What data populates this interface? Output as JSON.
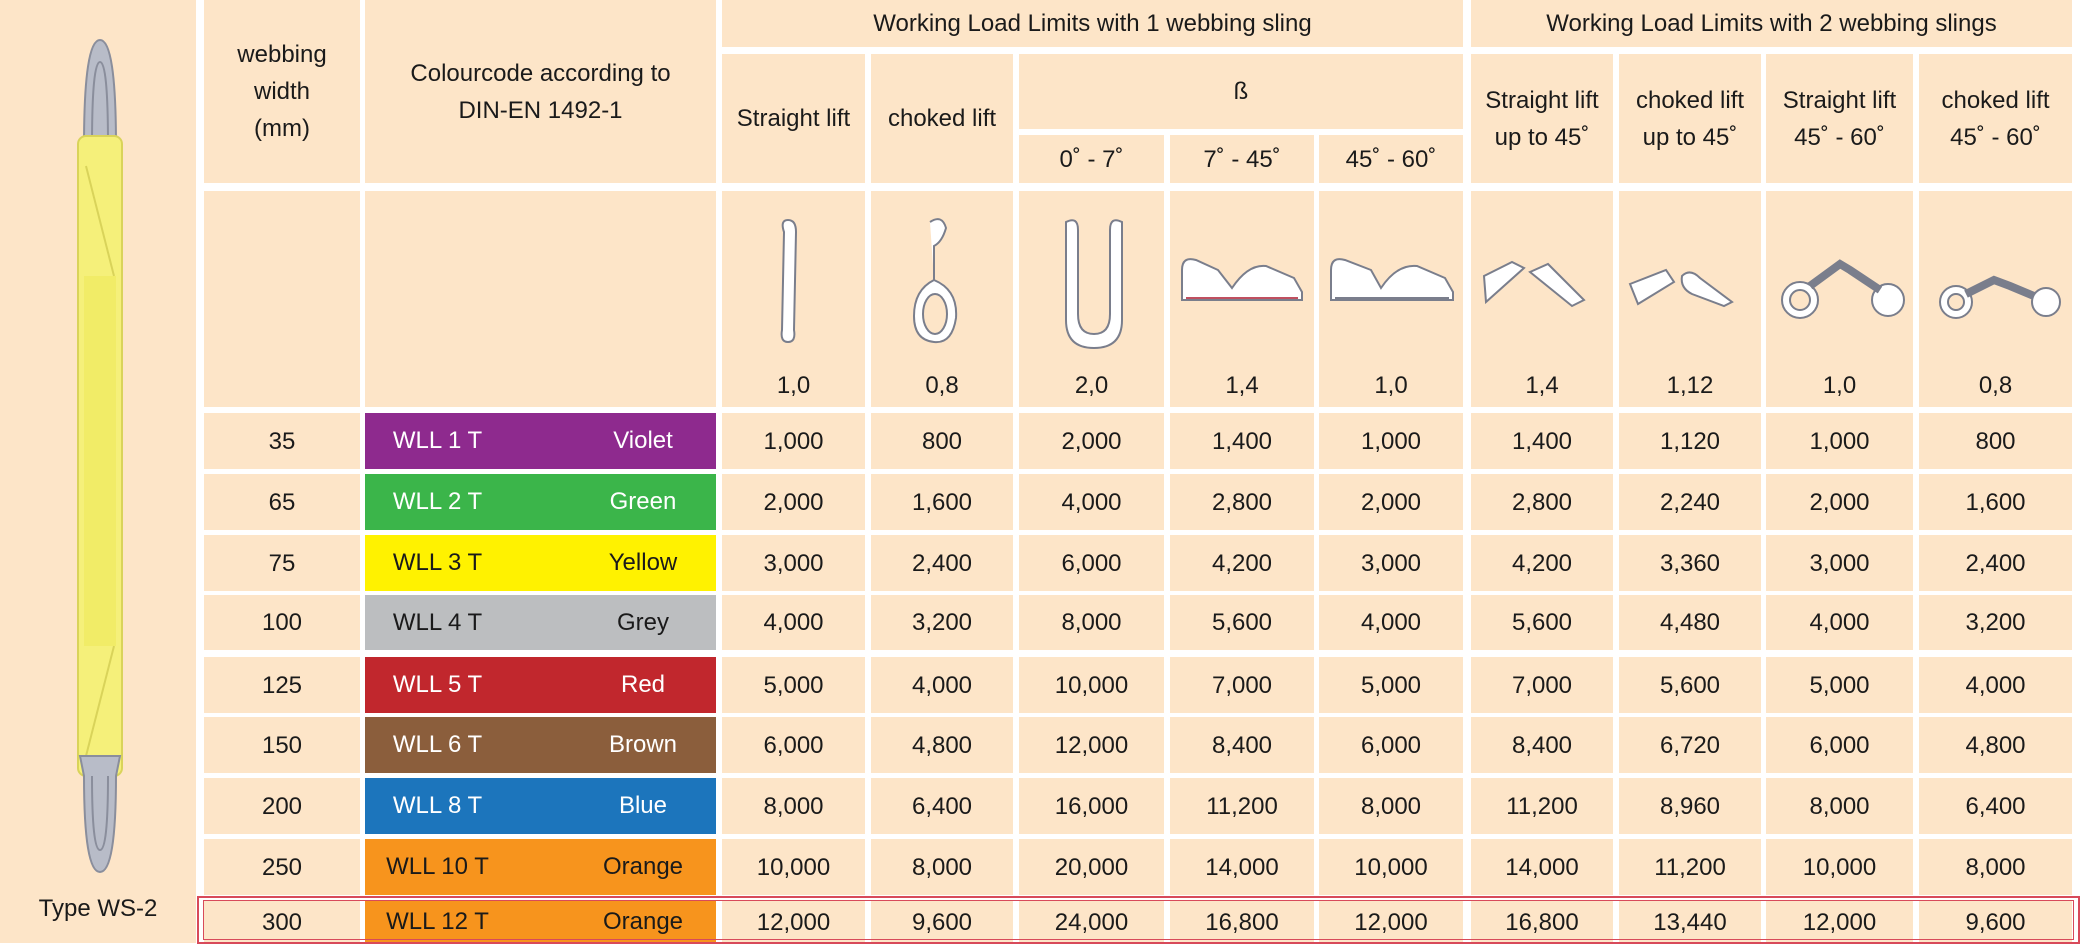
{
  "sling_caption": "Type WS-2",
  "header": {
    "width_label": "webbing width (mm)",
    "colour_label": "Colourcode according to DIN-EN 1492-1",
    "group1": "Working Load Limits with 1 webbing sling",
    "group2": "Working Load Limits with 2 webbing slings",
    "beta": "ß",
    "columns": [
      "Straight lift",
      "choked lift",
      "0˚ - 7˚",
      "7˚ - 45˚",
      "45˚ - 60˚",
      "Straight lift up to 45˚",
      "choked lift up to 45˚",
      "Straight lift 45˚ - 60˚",
      "choked lift 45˚ - 60˚"
    ]
  },
  "factors": [
    "1,0",
    "0,8",
    "2,0",
    "1,4",
    "1,0",
    "1,4",
    "1,12",
    "1,0",
    "0,8"
  ],
  "rows": [
    {
      "width": "35",
      "wll": "WLL 1 T",
      "colour": "Violet",
      "swatch": "#8e2a8e",
      "text_color": "#ffffff",
      "values": [
        "1,000",
        "800",
        "2,000",
        "1,400",
        "1,000",
        "1,400",
        "1,120",
        "1,000",
        "800"
      ]
    },
    {
      "width": "65",
      "wll": "WLL 2 T",
      "colour": "Green",
      "swatch": "#3bb54a",
      "text_color": "#ffffff",
      "values": [
        "2,000",
        "1,600",
        "4,000",
        "2,800",
        "2,000",
        "2,800",
        "2,240",
        "2,000",
        "1,600"
      ]
    },
    {
      "width": "75",
      "wll": "WLL 3 T",
      "colour": "Yellow",
      "swatch": "#fff200",
      "text_color": "#1a1a1a",
      "values": [
        "3,000",
        "2,400",
        "6,000",
        "4,200",
        "3,000",
        "4,200",
        "3,360",
        "3,000",
        "2,400"
      ]
    },
    {
      "width": "100",
      "wll": "WLL 4 T",
      "colour": "Grey",
      "swatch": "#bcbec0",
      "text_color": "#1a1a1a",
      "values": [
        "4,000",
        "3,200",
        "8,000",
        "5,600",
        "4,000",
        "5,600",
        "4,480",
        "4,000",
        "3,200"
      ]
    },
    {
      "width": "125",
      "wll": "WLL 5 T",
      "colour": "Red",
      "swatch": "#c1272d",
      "text_color": "#ffffff",
      "values": [
        "5,000",
        "4,000",
        "10,000",
        "7,000",
        "5,000",
        "7,000",
        "5,600",
        "5,000",
        "4,000"
      ]
    },
    {
      "width": "150",
      "wll": "WLL 6 T",
      "colour": "Brown",
      "swatch": "#8b5e3c",
      "text_color": "#ffffff",
      "values": [
        "6,000",
        "4,800",
        "12,000",
        "8,400",
        "6,000",
        "8,400",
        "6,720",
        "6,000",
        "4,800"
      ]
    },
    {
      "width": "200",
      "wll": "WLL 8 T",
      "colour": "Blue",
      "swatch": "#1c75bc",
      "text_color": "#ffffff",
      "values": [
        "8,000",
        "6,400",
        "16,000",
        "11,200",
        "8,000",
        "11,200",
        "8,960",
        "8,000",
        "6,400"
      ]
    },
    {
      "width": "250",
      "wll": "WLL 10 T",
      "colour": "Orange",
      "swatch": "#f7941d",
      "text_color": "#1a1a1a",
      "values": [
        "10,000",
        "8,000",
        "20,000",
        "14,000",
        "10,000",
        "14,000",
        "11,200",
        "10,000",
        "8,000"
      ]
    },
    {
      "width": "300",
      "wll": "WLL 12 T",
      "colour": "Orange",
      "swatch": "#f7941d",
      "text_color": "#1a1a1a",
      "values": [
        "12,000",
        "9,600",
        "24,000",
        "16,800",
        "12,000",
        "16,800",
        "13,440",
        "12,000",
        "9,600"
      ]
    }
  ],
  "colors": {
    "cell_bg": "#fde5c8",
    "grid": "#ffffff",
    "highlight_border": "#d84a5a",
    "sling_yellow": "#f5f07a",
    "sling_eye": "#b8bcc8"
  }
}
